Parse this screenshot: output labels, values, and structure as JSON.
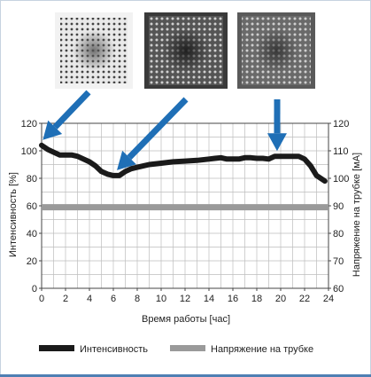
{
  "chart_data": {
    "type": "line",
    "xlabel": "Время работы [час]",
    "ylabel_left": "Интенсивность [%]",
    "ylabel_right": "Напряжение на трубке [мА]",
    "xlim": [
      0,
      24
    ],
    "ylim_left": [
      0,
      120
    ],
    "ylim_right": [
      60,
      120
    ],
    "x_ticks": [
      "0",
      "2",
      "4",
      "6",
      "8",
      "10",
      "12",
      "14",
      "16",
      "18",
      "20",
      "22",
      "24"
    ],
    "y_ticks_left": [
      "0",
      "20",
      "40",
      "60",
      "80",
      "100",
      "120"
    ],
    "y_ticks_right": [
      "60",
      "70",
      "80",
      "90",
      "100",
      "110",
      "120"
    ],
    "grid": true,
    "legend_placement": "bottom",
    "series": [
      {
        "name": "Интенсивность",
        "color": "#1a1a1a",
        "axis": "left",
        "x": [
          0,
          0.5,
          1,
          1.5,
          2,
          2.5,
          3,
          3.5,
          4,
          4.5,
          5,
          5.5,
          6,
          6.5,
          7,
          7.5,
          8,
          9,
          10,
          11,
          12,
          13,
          14,
          14.5,
          15,
          15.5,
          16,
          16.5,
          17,
          17.5,
          18,
          18.5,
          19,
          19.5,
          20,
          20.5,
          21,
          21.5,
          22,
          22.5,
          23,
          23.7
        ],
        "y": [
          104,
          101,
          99,
          97,
          97,
          97,
          96,
          94,
          92,
          89,
          85,
          83,
          82,
          82,
          85,
          87,
          88,
          90,
          91,
          92,
          92.5,
          93,
          94,
          94.5,
          95,
          94,
          94,
          94,
          95,
          95,
          94.5,
          94.5,
          94,
          96,
          96,
          96,
          96,
          96,
          94,
          89,
          82,
          78
        ]
      },
      {
        "name": "Напряжение на трубке",
        "color": "#9a9a9a",
        "axis": "right",
        "x": [
          0,
          24
        ],
        "y": [
          89.5,
          89.5
        ]
      }
    ],
    "annotations": [
      {
        "type": "arrow",
        "target_x": 0.1,
        "target_y": 104
      },
      {
        "type": "arrow",
        "target_x": 6.3,
        "target_y": 82
      },
      {
        "type": "arrow",
        "target_x": 19.7,
        "target_y": 96
      }
    ],
    "images": [
      {
        "name": "xray-image-1"
      },
      {
        "name": "xray-image-2"
      },
      {
        "name": "xray-image-3"
      }
    ]
  },
  "colors": {
    "arrow": "#1f6fb6",
    "grid": "#bdbdbd",
    "border": "#c7d3e0",
    "accent_bar": "#4f7fb3"
  }
}
